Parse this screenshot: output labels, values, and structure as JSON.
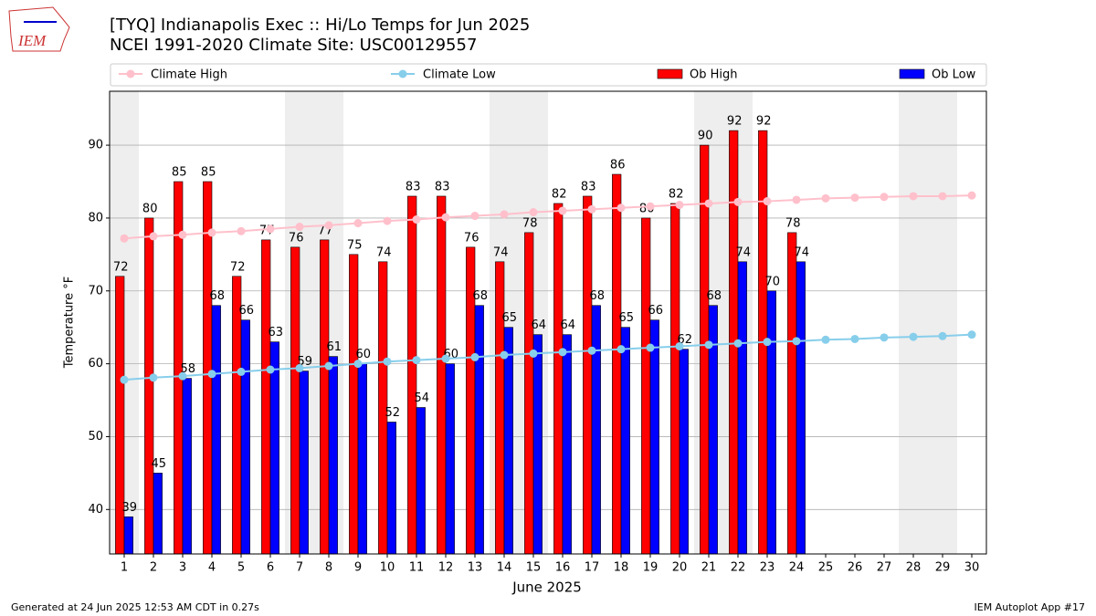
{
  "logo": "IEM",
  "chart_data": {
    "type": "bar",
    "title": "[TYQ] Indianapolis Exec :: Hi/Lo Temps for Jun 2025",
    "subtitle": "NCEI 1991-2020 Climate Site: USC00129557",
    "x_label": "June 2025",
    "y_label": "Temperature °F",
    "footer_left": "Generated at 24 Jun 2025 12:53 AM CDT in 0.27s",
    "footer_right": "IEM Autoplot App #17",
    "x": [
      1,
      2,
      3,
      4,
      5,
      6,
      7,
      8,
      9,
      10,
      11,
      12,
      13,
      14,
      15,
      16,
      17,
      18,
      19,
      20,
      21,
      22,
      23,
      24,
      25,
      26,
      27,
      28,
      29,
      30
    ],
    "xlim": [
      0.5,
      30.5
    ],
    "xticks": [
      1,
      2,
      3,
      4,
      5,
      6,
      7,
      8,
      9,
      10,
      11,
      12,
      13,
      14,
      15,
      16,
      17,
      18,
      19,
      20,
      21,
      22,
      23,
      24,
      25,
      26,
      27,
      28,
      29,
      30
    ],
    "ylim": [
      33.9,
      97.4
    ],
    "yticks": [
      40,
      50,
      60,
      70,
      80,
      90
    ],
    "grid": true,
    "shaded_days": [
      1,
      7,
      8,
      14,
      15,
      21,
      22,
      28,
      29
    ],
    "legend": "top",
    "series": [
      {
        "name": "Climate High",
        "type": "line",
        "color": "#ffc0cb",
        "values": [
          77.2,
          77.5,
          77.7,
          78.0,
          78.2,
          78.5,
          78.8,
          79.0,
          79.3,
          79.6,
          79.8,
          80.1,
          80.3,
          80.5,
          80.8,
          81.0,
          81.2,
          81.4,
          81.6,
          81.8,
          82.0,
          82.2,
          82.3,
          82.5,
          82.7,
          82.8,
          82.9,
          83.0,
          83.0,
          83.1
        ]
      },
      {
        "name": "Climate Low",
        "type": "line",
        "color": "#87ceeb",
        "values": [
          57.8,
          58.1,
          58.3,
          58.6,
          58.9,
          59.2,
          59.4,
          59.7,
          60.0,
          60.3,
          60.5,
          60.7,
          60.9,
          61.2,
          61.4,
          61.6,
          61.8,
          62.0,
          62.2,
          62.4,
          62.6,
          62.8,
          63.0,
          63.1,
          63.3,
          63.4,
          63.6,
          63.7,
          63.8,
          64.0
        ]
      },
      {
        "name": "Ob High",
        "type": "bar",
        "color": "#ff0000",
        "values": [
          72,
          80,
          85,
          85,
          72,
          77,
          76,
          77,
          75,
          74,
          83,
          83,
          76,
          74,
          78,
          82,
          83,
          86,
          80,
          82,
          90,
          92,
          92,
          78,
          null,
          null,
          null,
          null,
          null,
          null
        ]
      },
      {
        "name": "Ob Low",
        "type": "bar",
        "color": "#0000ff",
        "values": [
          39,
          45,
          58,
          68,
          66,
          63,
          59,
          61,
          60,
          52,
          54,
          60,
          68,
          65,
          64,
          64,
          68,
          65,
          66,
          62,
          68,
          74,
          70,
          74,
          null,
          null,
          null,
          null,
          null,
          null
        ]
      }
    ]
  }
}
